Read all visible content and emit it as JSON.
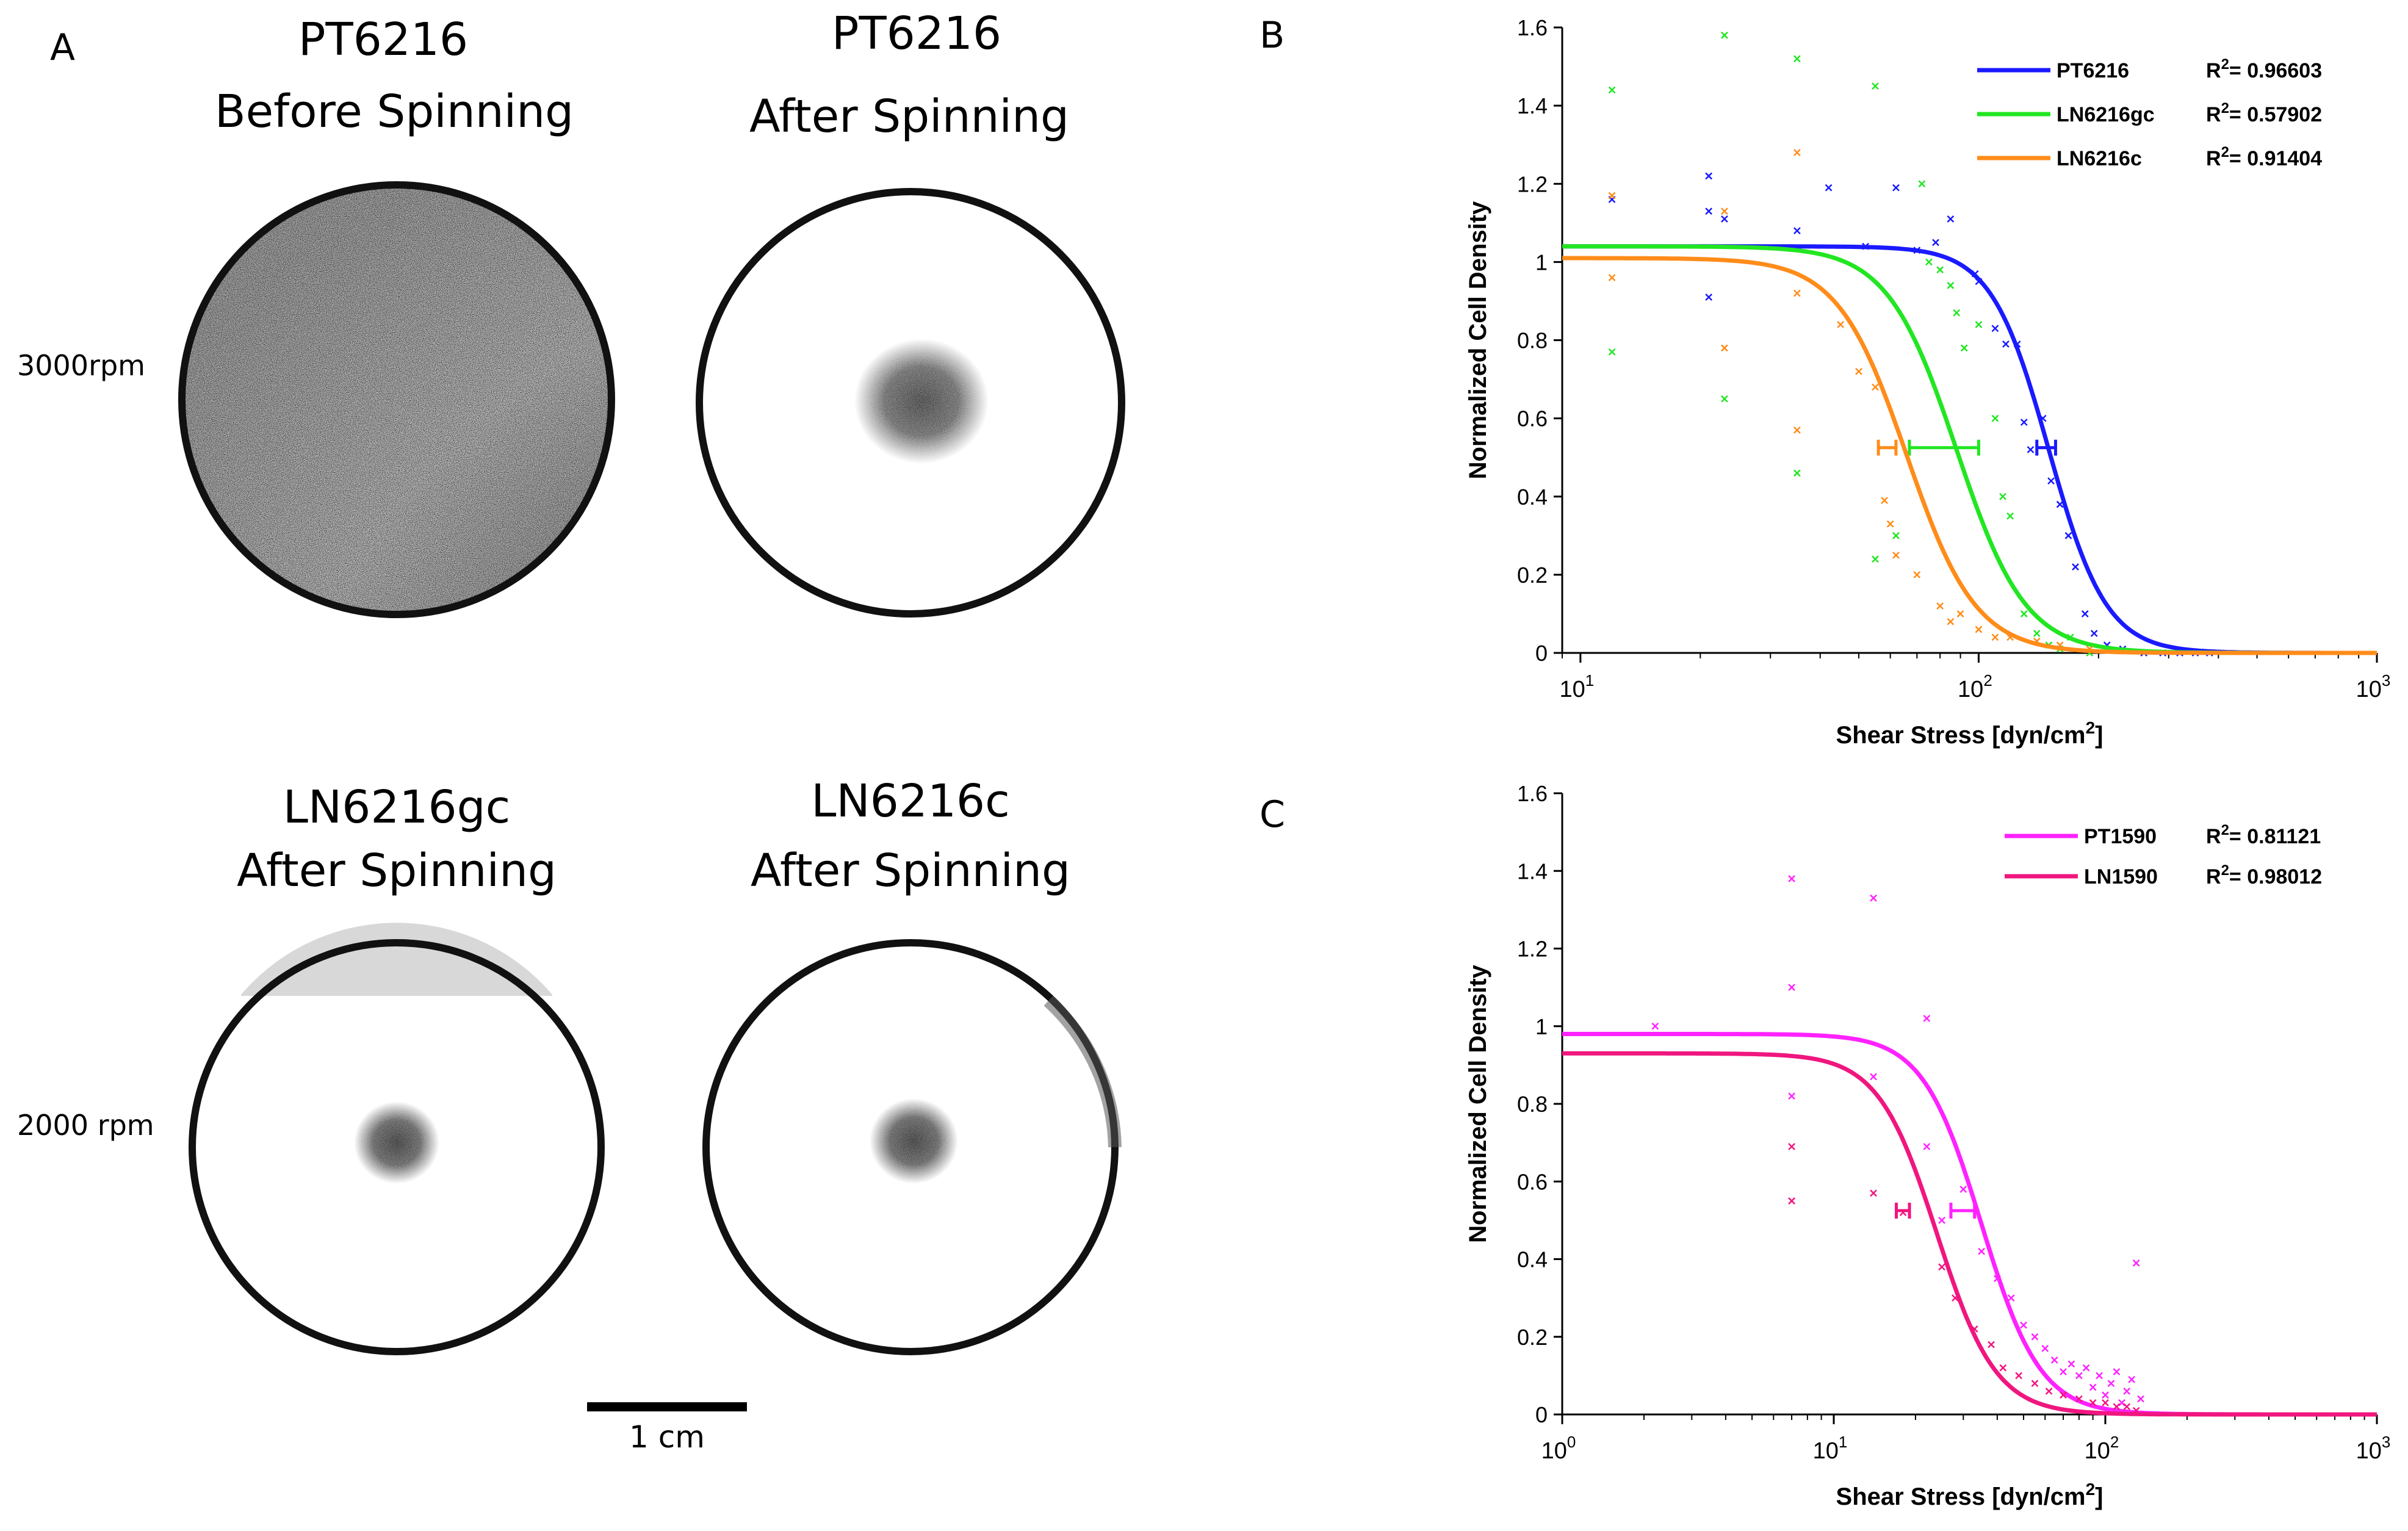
{
  "panel_a": {
    "letter": "A",
    "headers": {
      "top_left_line1": "PT6216",
      "top_left_line2": "Before Spinning",
      "top_right_line1": "PT6216",
      "top_right_line2": "After Spinning",
      "bottom_left_line1": "LN6216gc",
      "bottom_left_line2": "After Spinning",
      "bottom_right_line1": "LN6216c",
      "bottom_right_line2": "After Spinning"
    },
    "row_labels": {
      "top": "3000rpm",
      "bottom": "2000 rpm"
    },
    "scale_bar_label": "1 cm"
  },
  "panel_b": {
    "letter": "B"
  },
  "panel_c": {
    "letter": "C"
  },
  "chart_data": [
    {
      "panel": "B",
      "type": "scatter",
      "xscale": "log",
      "xlim": [
        9,
        1000
      ],
      "ylim": [
        0,
        1.6
      ],
      "xlabel": "Shear Stress [dyn/cm",
      "xlabel_sup": "2",
      "xlabel_end": "]",
      "ylabel": "Normalized Cell Density",
      "x_ticks": [
        {
          "base": "10",
          "exp": "1",
          "value": 10
        },
        {
          "base": "10",
          "exp": "2",
          "value": 100
        },
        {
          "base": "10",
          "exp": "3",
          "value": 1000
        }
      ],
      "y_ticks": [
        "0",
        "0.2",
        "0.4",
        "0.6",
        "0.8",
        "1",
        "1.2",
        "1.4",
        "1.6"
      ],
      "series": [
        {
          "name": "PT6216",
          "r2_label": "R",
          "r2_sup": "2",
          "r2_value": "= 0.96603",
          "color": "#1a1aff",
          "fit": {
            "top": 1.04,
            "tau50": 150,
            "slope": 6
          },
          "errorbar": {
            "y": 0.525,
            "x_low": 140,
            "x_high": 156
          },
          "points": [
            [
              12,
              1.16
            ],
            [
              21,
              1.22
            ],
            [
              21,
              1.13
            ],
            [
              21,
              0.91
            ],
            [
              23,
              1.11
            ],
            [
              35,
              1.08
            ],
            [
              42,
              1.19
            ],
            [
              52,
              1.04
            ],
            [
              62,
              1.19
            ],
            [
              70,
              1.03
            ],
            [
              78,
              1.05
            ],
            [
              85,
              1.11
            ],
            [
              98,
              0.97
            ],
            [
              100,
              0.95
            ],
            [
              110,
              0.83
            ],
            [
              117,
              0.79
            ],
            [
              125,
              0.79
            ],
            [
              130,
              0.59
            ],
            [
              135,
              0.52
            ],
            [
              145,
              0.6
            ],
            [
              152,
              0.44
            ],
            [
              160,
              0.38
            ],
            [
              168,
              0.3
            ],
            [
              175,
              0.22
            ],
            [
              185,
              0.1
            ],
            [
              195,
              0.05
            ],
            [
              210,
              0.02
            ],
            [
              230,
              0.01
            ],
            [
              260,
              0
            ],
            [
              290,
              0
            ],
            [
              320,
              0
            ],
            [
              350,
              0
            ],
            [
              380,
              0
            ]
          ]
        },
        {
          "name": "LN6216gc",
          "r2_label": "R",
          "r2_sup": "2",
          "r2_value": "= 0.57902",
          "color": "#22e622",
          "fit": {
            "top": 1.04,
            "tau50": 88,
            "slope": 5
          },
          "errorbar": {
            "y": 0.525,
            "x_low": 67,
            "x_high": 100
          },
          "points": [
            [
              12,
              1.44
            ],
            [
              12,
              0.77
            ],
            [
              23,
              1.58
            ],
            [
              23,
              0.65
            ],
            [
              35,
              1.52
            ],
            [
              35,
              0.46
            ],
            [
              55,
              1.45
            ],
            [
              55,
              0.24
            ],
            [
              62,
              0.3
            ],
            [
              72,
              1.2
            ],
            [
              75,
              1.0
            ],
            [
              80,
              0.98
            ],
            [
              85,
              0.94
            ],
            [
              88,
              0.87
            ],
            [
              92,
              0.78
            ],
            [
              100,
              0.84
            ],
            [
              110,
              0.6
            ],
            [
              115,
              0.4
            ],
            [
              120,
              0.35
            ],
            [
              130,
              0.1
            ],
            [
              140,
              0.05
            ],
            [
              150,
              0.02
            ],
            [
              160,
              0.01
            ],
            [
              170,
              0.04
            ],
            [
              190,
              0
            ]
          ]
        },
        {
          "name": "LN6216c",
          "r2_label": "R",
          "r2_sup": "2",
          "r2_value": "= 0.91404",
          "color": "#ff8c1a",
          "fit": {
            "top": 1.01,
            "tau50": 66,
            "slope": 5
          },
          "errorbar": {
            "y": 0.525,
            "x_low": 56,
            "x_high": 62
          },
          "points": [
            [
              12,
              1.17
            ],
            [
              12,
              0.96
            ],
            [
              23,
              1.13
            ],
            [
              23,
              0.78
            ],
            [
              35,
              1.28
            ],
            [
              35,
              0.92
            ],
            [
              35,
              0.57
            ],
            [
              45,
              0.84
            ],
            [
              50,
              0.72
            ],
            [
              55,
              0.68
            ],
            [
              58,
              0.39
            ],
            [
              60,
              0.33
            ],
            [
              62,
              0.25
            ],
            [
              70,
              0.2
            ],
            [
              80,
              0.12
            ],
            [
              85,
              0.08
            ],
            [
              90,
              0.1
            ],
            [
              100,
              0.06
            ],
            [
              110,
              0.04
            ],
            [
              120,
              0.04
            ],
            [
              140,
              0.03
            ],
            [
              160,
              0.02
            ],
            [
              190,
              0.01
            ]
          ]
        }
      ]
    },
    {
      "panel": "C",
      "type": "scatter",
      "xscale": "log",
      "xlim": [
        1,
        1000
      ],
      "ylim": [
        0,
        1.6
      ],
      "xlabel": "Shear Stress [dyn/cm",
      "xlabel_sup": "2",
      "xlabel_end": "]",
      "ylabel": "Normalized Cell Density",
      "x_ticks": [
        {
          "base": "10",
          "exp": "0",
          "value": 1
        },
        {
          "base": "10",
          "exp": "1",
          "value": 10
        },
        {
          "base": "10",
          "exp": "2",
          "value": 100
        },
        {
          "base": "10",
          "exp": "3",
          "value": 1000
        }
      ],
      "y_ticks": [
        "0",
        "0.2",
        "0.4",
        "0.6",
        "0.8",
        "1",
        "1.2",
        "1.4",
        "1.6"
      ],
      "series": [
        {
          "name": "PT1590",
          "r2_label": "R",
          "r2_sup": "2",
          "r2_value": "= 0.81121",
          "color": "#ff22ff",
          "fit": {
            "top": 0.98,
            "tau50": 35,
            "slope": 4
          },
          "errorbar": {
            "y": 0.525,
            "x_low": 27,
            "x_high": 33
          },
          "points": [
            [
              2.2,
              1.0
            ],
            [
              7,
              1.38
            ],
            [
              7,
              1.1
            ],
            [
              7,
              0.82
            ],
            [
              14,
              1.33
            ],
            [
              14,
              0.87
            ],
            [
              22,
              1.02
            ],
            [
              22,
              0.69
            ],
            [
              25,
              0.5
            ],
            [
              30,
              0.58
            ],
            [
              35,
              0.42
            ],
            [
              40,
              0.35
            ],
            [
              45,
              0.3
            ],
            [
              50,
              0.23
            ],
            [
              55,
              0.2
            ],
            [
              60,
              0.17
            ],
            [
              65,
              0.14
            ],
            [
              70,
              0.11
            ],
            [
              75,
              0.13
            ],
            [
              80,
              0.1
            ],
            [
              85,
              0.12
            ],
            [
              90,
              0.07
            ],
            [
              95,
              0.1
            ],
            [
              100,
              0.05
            ],
            [
              105,
              0.08
            ],
            [
              110,
              0.11
            ],
            [
              115,
              0.03
            ],
            [
              120,
              0.06
            ],
            [
              125,
              0.09
            ],
            [
              130,
              0.39
            ],
            [
              135,
              0.04
            ]
          ]
        },
        {
          "name": "LN1590",
          "r2_label": "R",
          "r2_sup": "2",
          "r2_value": "= 0.98012",
          "color": "#f0167f",
          "fit": {
            "top": 0.93,
            "tau50": 24,
            "slope": 4
          },
          "errorbar": {
            "y": 0.525,
            "x_low": 17,
            "x_high": 19
          },
          "points": [
            [
              7,
              0.69
            ],
            [
              7,
              0.55
            ],
            [
              14,
              0.57
            ],
            [
              18,
              0.52
            ],
            [
              25,
              0.38
            ],
            [
              28,
              0.3
            ],
            [
              33,
              0.22
            ],
            [
              38,
              0.18
            ],
            [
              42,
              0.12
            ],
            [
              48,
              0.1
            ],
            [
              55,
              0.08
            ],
            [
              62,
              0.06
            ],
            [
              70,
              0.05
            ],
            [
              80,
              0.04
            ],
            [
              90,
              0.03
            ],
            [
              100,
              0.03
            ],
            [
              110,
              0.02
            ],
            [
              120,
              0.02
            ],
            [
              130,
              0.01
            ]
          ]
        }
      ]
    }
  ]
}
